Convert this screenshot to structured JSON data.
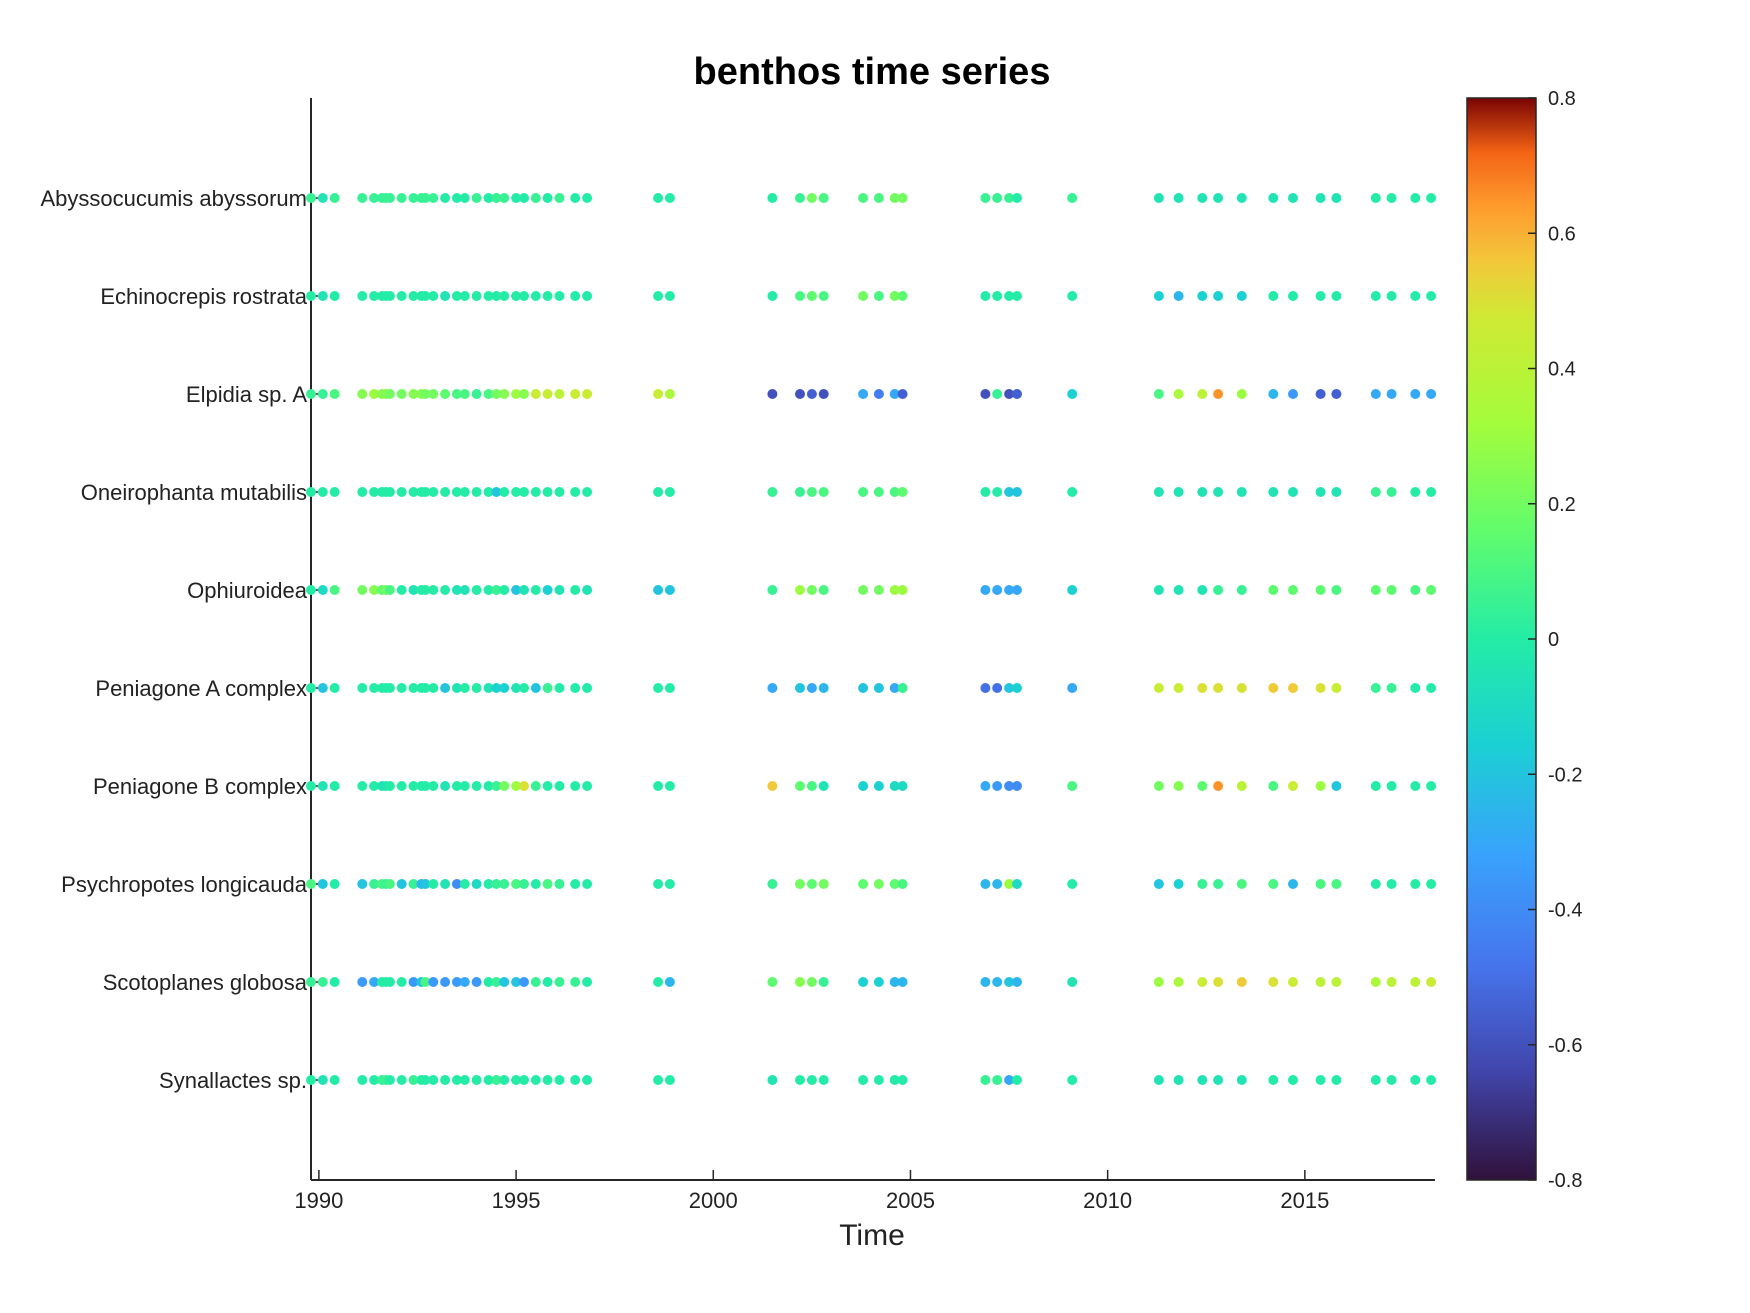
{
  "chart_data": {
    "type": "scatter",
    "title": "benthos time series",
    "xlabel": "Time",
    "ylabel": "",
    "xlim": [
      1989.8,
      2018.3
    ],
    "xticks": [
      "1990",
      "1995",
      "2000",
      "2005",
      "2010",
      "2015"
    ],
    "categories": [
      "Abyssocucumis abyssorum",
      "Echinocrepis rostrata",
      "Elpidia sp. A",
      "Oneirophanta mutabilis",
      "Ophiuroidea",
      "Peniagone A complex",
      "Peniagone B complex",
      "Psychropotes longicauda",
      "Scotoplanes globosa",
      "Synallactes sp."
    ],
    "colorbar": {
      "colormap": "turbo",
      "clim": [
        -0.8,
        0.8
      ],
      "ticks": [
        "0.8",
        "0.6",
        "0.4",
        "0.2",
        "0",
        "-0.2",
        "-0.4",
        "-0.6",
        "-0.8"
      ]
    },
    "times": [
      1989.8,
      1990.1,
      1990.4,
      1991.1,
      1991.4,
      1991.6,
      1991.7,
      1991.8,
      1992.1,
      1992.4,
      1992.6,
      1992.7,
      1992.9,
      1993.2,
      1993.5,
      1993.7,
      1994.0,
      1994.3,
      1994.5,
      1994.7,
      1995.0,
      1995.2,
      1995.5,
      1995.8,
      1996.1,
      1996.5,
      1996.8,
      1998.6,
      1998.9,
      2001.5,
      2002.2,
      2002.5,
      2002.8,
      2003.8,
      2004.2,
      2004.6,
      2004.8,
      2006.9,
      2007.2,
      2007.5,
      2007.7,
      2009.1,
      2011.3,
      2011.8,
      2012.4,
      2012.8,
      2013.4,
      2014.2,
      2014.7,
      2015.4,
      2015.8,
      2016.8,
      2017.2,
      2017.8,
      2018.2
    ],
    "series": [
      {
        "name": "Abyssocucumis abyssorum",
        "values": [
          0.05,
          -0.05,
          0.05,
          0.05,
          0.05,
          0.05,
          0.05,
          0.05,
          0.05,
          0.05,
          0.05,
          0.05,
          0.05,
          0.0,
          0.0,
          0.0,
          0.05,
          0.0,
          0.05,
          0.05,
          0.0,
          0.0,
          0.05,
          0.0,
          0.05,
          0.0,
          0.0,
          0.0,
          0.0,
          0.0,
          0.05,
          0.2,
          0.1,
          0.1,
          0.1,
          0.2,
          0.2,
          0.05,
          0.05,
          0.05,
          0.0,
          0.05,
          -0.05,
          -0.05,
          -0.05,
          -0.05,
          -0.05,
          -0.05,
          -0.05,
          -0.05,
          -0.05,
          0.0,
          0.0,
          0.0,
          0.0
        ]
      },
      {
        "name": "Echinocrepis rostrata",
        "values": [
          0.0,
          -0.05,
          0.0,
          0.0,
          0.0,
          0.0,
          0.0,
          0.0,
          0.0,
          0.0,
          0.0,
          0.0,
          0.0,
          -0.05,
          0.0,
          0.0,
          0.0,
          0.0,
          0.0,
          0.0,
          0.0,
          0.0,
          0.0,
          0.0,
          0.0,
          0.0,
          0.0,
          0.0,
          0.0,
          0.0,
          0.1,
          0.15,
          0.1,
          0.2,
          0.1,
          0.2,
          0.15,
          0.0,
          0.0,
          0.0,
          0.0,
          0.0,
          -0.15,
          -0.25,
          -0.15,
          -0.15,
          -0.15,
          0.0,
          0.0,
          0.0,
          0.0,
          0.0,
          0.0,
          0.0,
          0.0
        ]
      },
      {
        "name": "Elpidia sp. A",
        "values": [
          0.05,
          0.05,
          0.1,
          0.25,
          0.3,
          0.25,
          0.25,
          0.2,
          0.2,
          0.25,
          0.25,
          0.2,
          0.2,
          0.15,
          0.1,
          0.1,
          0.05,
          0.1,
          0.2,
          0.25,
          0.3,
          0.25,
          0.45,
          0.45,
          0.4,
          0.45,
          0.45,
          0.45,
          0.35,
          -0.6,
          -0.6,
          -0.55,
          -0.6,
          -0.3,
          -0.45,
          -0.3,
          -0.55,
          -0.6,
          0.05,
          -0.6,
          -0.55,
          -0.15,
          0.1,
          0.35,
          0.4,
          0.65,
          0.3,
          -0.25,
          -0.35,
          -0.55,
          -0.55,
          -0.3,
          -0.3,
          -0.3,
          -0.3
        ]
      },
      {
        "name": "Oneirophanta mutabilis",
        "values": [
          0.0,
          0.0,
          0.0,
          0.0,
          0.0,
          0.0,
          0.0,
          0.0,
          0.0,
          0.0,
          0.0,
          0.0,
          0.0,
          0.0,
          0.0,
          0.0,
          0.0,
          0.0,
          -0.2,
          0.0,
          0.0,
          0.0,
          0.0,
          0.0,
          0.0,
          0.0,
          0.0,
          0.0,
          0.0,
          0.05,
          0.05,
          0.1,
          0.1,
          0.1,
          0.1,
          0.1,
          0.15,
          0.0,
          0.0,
          -0.2,
          -0.2,
          0.0,
          -0.05,
          -0.05,
          -0.05,
          -0.05,
          -0.05,
          -0.05,
          -0.05,
          -0.05,
          -0.05,
          0.05,
          0.05,
          0.0,
          0.0
        ]
      },
      {
        "name": "Ophiuroidea",
        "values": [
          0.0,
          -0.1,
          0.1,
          0.2,
          0.25,
          0.15,
          0.2,
          0.1,
          0.0,
          -0.05,
          0.0,
          0.0,
          0.0,
          0.0,
          -0.05,
          -0.05,
          0.0,
          0.0,
          0.05,
          0.0,
          -0.2,
          -0.05,
          0.0,
          -0.15,
          -0.05,
          0.0,
          -0.05,
          -0.2,
          -0.2,
          0.05,
          0.3,
          0.2,
          0.1,
          0.2,
          0.2,
          0.3,
          0.3,
          -0.3,
          -0.3,
          -0.3,
          -0.3,
          -0.15,
          -0.05,
          -0.05,
          -0.05,
          0.05,
          0.05,
          0.15,
          0.15,
          0.15,
          0.1,
          0.15,
          0.15,
          0.1,
          0.15
        ]
      },
      {
        "name": "Peniagone A complex",
        "values": [
          0.0,
          -0.2,
          0.0,
          0.0,
          0.0,
          0.0,
          0.0,
          0.0,
          0.0,
          0.0,
          0.0,
          0.0,
          0.0,
          -0.2,
          -0.05,
          0.0,
          0.0,
          -0.05,
          -0.15,
          -0.15,
          -0.05,
          0.0,
          -0.2,
          0.05,
          0.0,
          0.0,
          0.0,
          0.0,
          0.0,
          -0.3,
          -0.2,
          -0.3,
          -0.25,
          -0.2,
          -0.2,
          -0.3,
          0.05,
          -0.5,
          -0.5,
          -0.2,
          -0.15,
          -0.3,
          0.45,
          0.45,
          0.5,
          0.5,
          0.5,
          0.55,
          0.55,
          0.5,
          0.45,
          0.05,
          0.05,
          0.0,
          0.0
        ]
      },
      {
        "name": "Peniagone B complex",
        "values": [
          0.0,
          -0.05,
          0.0,
          0.0,
          0.0,
          -0.05,
          -0.05,
          0.0,
          0.0,
          0.0,
          0.0,
          0.0,
          0.0,
          -0.05,
          0.0,
          0.0,
          0.0,
          0.0,
          0.05,
          0.2,
          0.3,
          0.5,
          0.05,
          0.0,
          0.0,
          0.0,
          0.0,
          0.0,
          0.0,
          0.55,
          0.15,
          0.1,
          -0.05,
          -0.15,
          -0.15,
          -0.1,
          -0.1,
          -0.3,
          -0.35,
          -0.4,
          -0.4,
          0.1,
          0.2,
          0.25,
          0.15,
          0.65,
          0.4,
          0.1,
          0.45,
          0.3,
          -0.2,
          0.0,
          0.0,
          0.0,
          0.0
        ]
      },
      {
        "name": "Psychropotes longicauda",
        "values": [
          0.1,
          -0.2,
          0.0,
          -0.2,
          0.05,
          0.1,
          0.05,
          0.1,
          -0.2,
          0.05,
          -0.25,
          -0.2,
          0.0,
          -0.05,
          -0.4,
          0.0,
          -0.1,
          0.0,
          0.05,
          0.05,
          0.1,
          0.05,
          0.0,
          0.1,
          0.05,
          0.0,
          0.0,
          0.0,
          0.0,
          0.05,
          0.2,
          0.15,
          0.2,
          0.15,
          0.2,
          0.15,
          0.1,
          -0.25,
          -0.25,
          0.3,
          -0.1,
          0.0,
          -0.2,
          -0.15,
          0.05,
          0.05,
          0.1,
          0.1,
          -0.25,
          0.1,
          0.1,
          0.0,
          0.0,
          0.0,
          0.0
        ]
      },
      {
        "name": "Scotoplanes globosa",
        "values": [
          0.05,
          0.05,
          0.0,
          -0.35,
          -0.3,
          0.0,
          0.0,
          0.0,
          0.0,
          -0.35,
          -0.2,
          0.1,
          -0.35,
          -0.35,
          -0.35,
          -0.3,
          -0.35,
          0.0,
          0.05,
          -0.2,
          -0.2,
          -0.35,
          0.05,
          0.0,
          0.05,
          0.05,
          0.0,
          0.0,
          -0.25,
          0.15,
          0.25,
          0.2,
          0.05,
          -0.15,
          -0.15,
          -0.25,
          -0.25,
          -0.25,
          -0.25,
          -0.2,
          -0.25,
          -0.05,
          0.3,
          0.35,
          0.45,
          0.5,
          0.55,
          0.5,
          0.45,
          0.4,
          0.4,
          0.35,
          0.4,
          0.4,
          0.45
        ]
      },
      {
        "name": "Synallactes sp.",
        "values": [
          0.0,
          -0.05,
          0.0,
          0.0,
          0.0,
          0.05,
          0.05,
          0.0,
          0.0,
          0.05,
          0.0,
          0.0,
          0.0,
          0.0,
          0.0,
          0.0,
          0.0,
          0.0,
          0.05,
          0.0,
          0.0,
          0.0,
          0.0,
          0.0,
          0.0,
          0.0,
          0.0,
          0.0,
          0.0,
          -0.05,
          0.0,
          0.0,
          0.0,
          0.0,
          0.0,
          0.0,
          0.0,
          0.05,
          0.05,
          -0.3,
          0.0,
          0.0,
          -0.05,
          -0.05,
          -0.05,
          -0.05,
          -0.05,
          0.0,
          0.0,
          0.0,
          0.0,
          0.0,
          0.0,
          0.0,
          0.0
        ]
      }
    ]
  }
}
